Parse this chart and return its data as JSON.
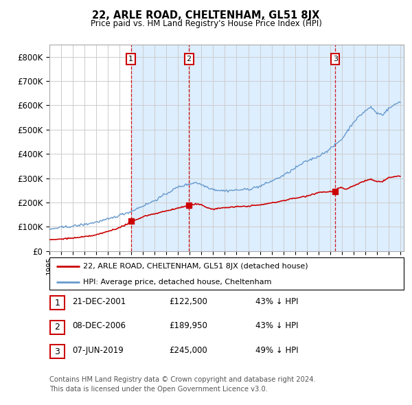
{
  "title": "22, ARLE ROAD, CHELTENHAM, GL51 8JX",
  "subtitle": "Price paid vs. HM Land Registry's House Price Index (HPI)",
  "ylabel_ticks": [
    "£0",
    "£100K",
    "£200K",
    "£300K",
    "£400K",
    "£500K",
    "£600K",
    "£700K",
    "£800K"
  ],
  "ytick_values": [
    0,
    100000,
    200000,
    300000,
    400000,
    500000,
    600000,
    700000,
    800000
  ],
  "ylim": [
    0,
    850000
  ],
  "xlim_start": 1995.0,
  "xlim_end": 2025.3,
  "sale_dates": [
    2001.97,
    2006.93,
    2019.44
  ],
  "sale_prices": [
    122500,
    189950,
    245000
  ],
  "sale_labels": [
    "1",
    "2",
    "3"
  ],
  "red_line_color": "#cc0000",
  "blue_line_color": "#6699cc",
  "shade_color": "#ddeeff",
  "grid_color": "#cccccc",
  "background_color": "#ffffff",
  "legend_entry1": "22, ARLE ROAD, CHELTENHAM, GL51 8JX (detached house)",
  "legend_entry2": "HPI: Average price, detached house, Cheltenham",
  "table_rows": [
    [
      "1",
      "21-DEC-2001",
      "£122,500",
      "43% ↓ HPI"
    ],
    [
      "2",
      "08-DEC-2006",
      "£189,950",
      "43% ↓ HPI"
    ],
    [
      "3",
      "07-JUN-2019",
      "£245,000",
      "49% ↓ HPI"
    ]
  ],
  "footnote1": "Contains HM Land Registry data © Crown copyright and database right 2024.",
  "footnote2": "This data is licensed under the Open Government Licence v3.0."
}
